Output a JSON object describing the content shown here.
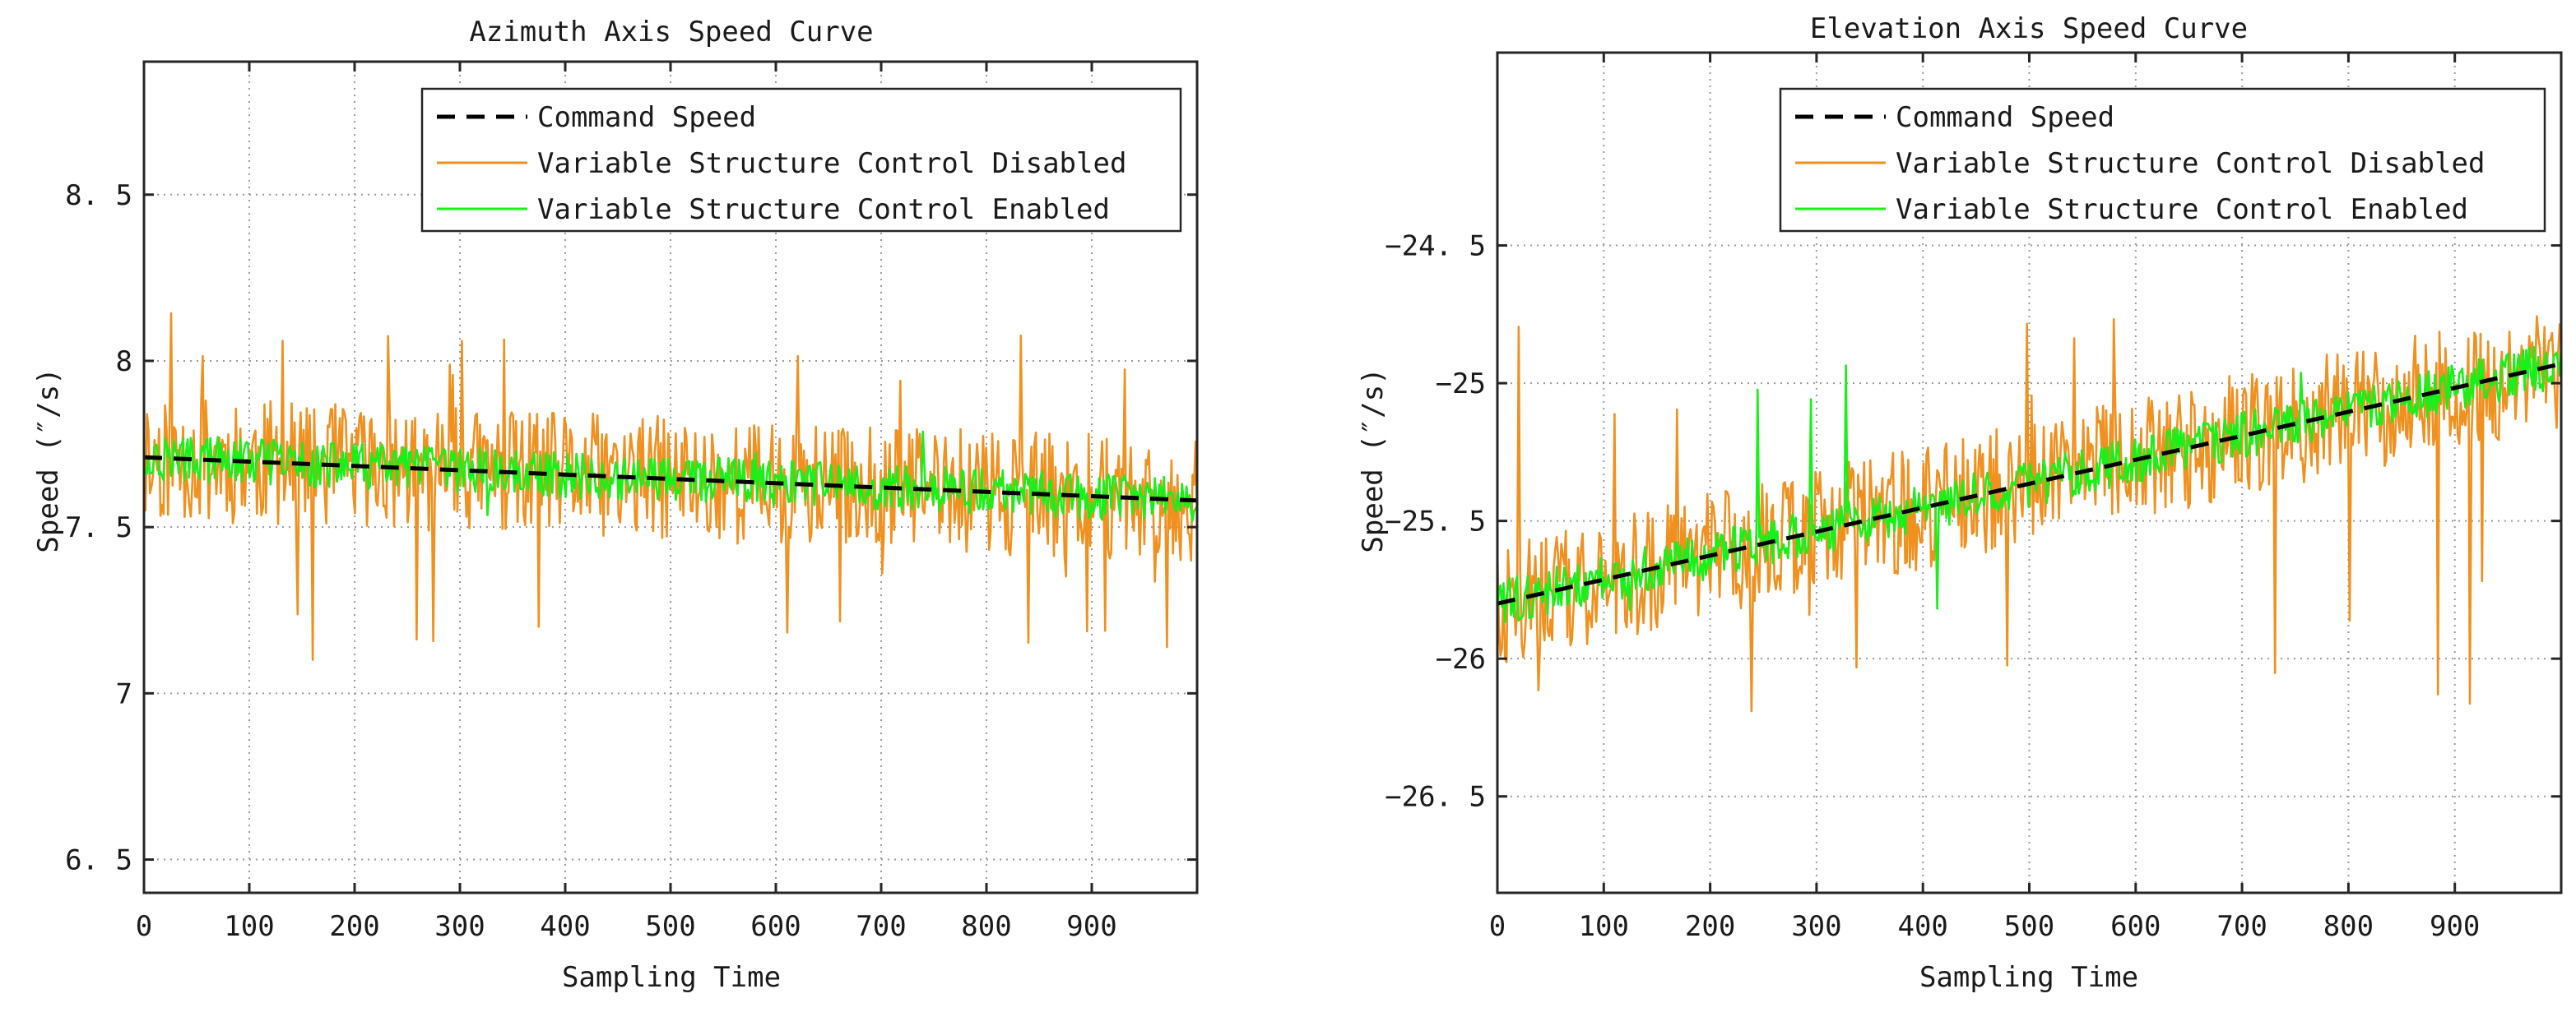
{
  "figure": {
    "chart_data": [
      {
        "type": "line",
        "title": "Azimuth Axis Speed Curve",
        "xlabel": "Sampling Time",
        "ylabel": "Speed (″/s)",
        "xlim": [
          0,
          1000
        ],
        "ylim": [
          6.4,
          8.9
        ],
        "xticks": [
          0,
          100,
          200,
          300,
          400,
          500,
          600,
          700,
          800,
          900
        ],
        "xtick_labels": [
          "0",
          "100",
          "200",
          "300",
          "400",
          "500",
          "600",
          "700",
          "800",
          "900"
        ],
        "yticks": [
          6.5,
          7,
          7.5,
          8,
          8.5
        ],
        "ytick_labels": [
          "6. 5",
          "7",
          "7. 5",
          "8",
          "8. 5"
        ],
        "grid": true,
        "legend_position": "top-right",
        "series": [
          {
            "name": "Command Speed",
            "color": "#000000",
            "style": "dashed",
            "x": [
              0,
              1000
            ],
            "y": [
              7.71,
              7.58
            ]
          },
          {
            "name": "Variable Structure Control Disabled",
            "color": "#f0901e",
            "style": "solid",
            "trend": {
              "x": [
                0,
                1000
              ],
              "y": [
                7.71,
                7.58
              ]
            },
            "approx_range": [
              7.1,
              8.18
            ]
          },
          {
            "name": "Variable Structure Control Enabled",
            "color": "#19f019",
            "style": "solid",
            "trend": {
              "x": [
                0,
                1000
              ],
              "y": [
                7.71,
                7.58
              ]
            },
            "approx_range": [
              7.52,
              7.8
            ]
          }
        ]
      },
      {
        "type": "line",
        "title": "Elevation Axis Speed Curve",
        "xlabel": "Sampling Time",
        "ylabel": "Speed (″/s)",
        "xlim": [
          0,
          1000
        ],
        "ylim": [
          -26.85,
          -23.8
        ],
        "xticks": [
          0,
          100,
          200,
          300,
          400,
          500,
          600,
          700,
          800,
          900
        ],
        "xtick_labels": [
          "0",
          "100",
          "200",
          "300",
          "400",
          "500",
          "600",
          "700",
          "800",
          "900"
        ],
        "yticks": [
          -26.5,
          -26,
          -25.5,
          -25,
          -24.5
        ],
        "ytick_labels": [
          "−26. 5",
          "−26",
          "−25. 5",
          "−25",
          "−24. 5"
        ],
        "grid": true,
        "legend_position": "top-right",
        "series": [
          {
            "name": "Command Speed",
            "color": "#000000",
            "style": "dashed",
            "x": [
              0,
              1000
            ],
            "y": [
              -25.8,
              -24.93
            ]
          },
          {
            "name": "Variable Structure Control Disabled",
            "color": "#f0901e",
            "style": "solid",
            "trend": {
              "x": [
                0,
                1000
              ],
              "y": [
                -25.8,
                -24.93
              ]
            },
            "approx_range": [
              -26.2,
              -24.75
            ]
          },
          {
            "name": "Variable Structure Control Enabled",
            "color": "#19f019",
            "style": "solid",
            "trend": {
              "x": [
                0,
                1000
              ],
              "y": [
                -25.8,
                -24.93
              ]
            },
            "approx_range": [
              -25.9,
              -24.8
            ]
          }
        ]
      }
    ]
  }
}
